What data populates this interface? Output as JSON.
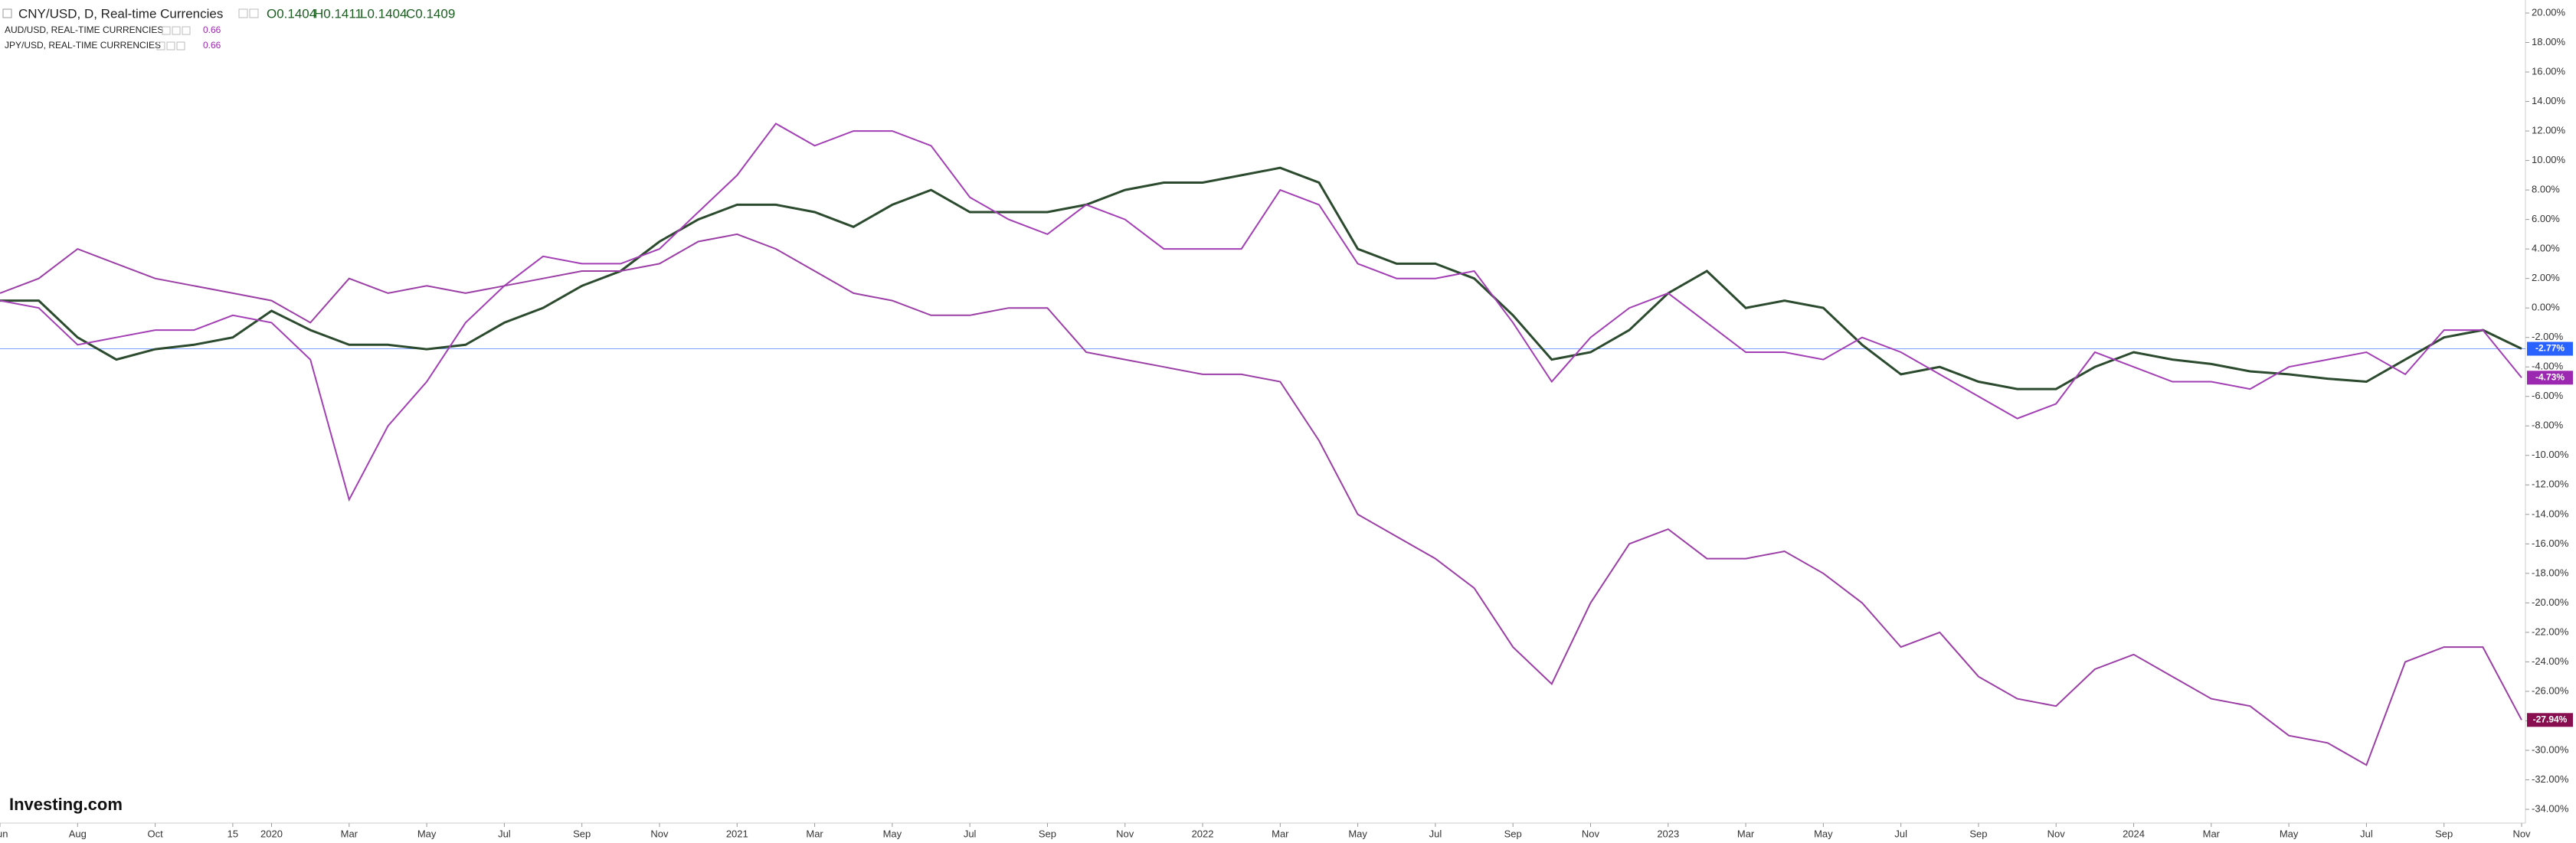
{
  "chart_data": {
    "type": "line",
    "title": "CNY/USD, D, Real-time Currencies",
    "ohlc": [
      "O0.1404",
      "H0.1411",
      "L0.1404",
      "C0.1409"
    ],
    "brand": "Investing.com",
    "categories": [
      "Jun",
      null,
      "Aug",
      null,
      "Oct",
      null,
      "15",
      "2020",
      null,
      "Mar",
      null,
      "May",
      null,
      "Jul",
      null,
      "Sep",
      null,
      "Nov",
      null,
      "2021",
      null,
      "Mar",
      null,
      "May",
      null,
      "Jul",
      null,
      "Sep",
      null,
      "Nov",
      null,
      "2022",
      null,
      "Mar",
      null,
      "May",
      null,
      "Jul",
      null,
      "Sep",
      null,
      "Nov",
      null,
      "2023",
      null,
      "Mar",
      null,
      "May",
      null,
      "Jul",
      null,
      "Sep",
      null,
      "Nov",
      null,
      "2024",
      null,
      "Mar",
      null,
      "May",
      null,
      "Jul",
      null,
      "Sep",
      null,
      "Nov"
    ],
    "series": [
      {
        "name": "CNY/USD, D, Real-time Currencies",
        "color": "#2b4a2e",
        "label_color": "#2962ff",
        "last_value_label": "-2.77%",
        "price_line": true,
        "values": [
          0.5,
          0.5,
          -2,
          -3.5,
          -2.8,
          -2.5,
          -2,
          -0.2,
          -1.5,
          -2.5,
          -2.5,
          -2.8,
          -2.5,
          -1,
          0,
          1.5,
          2.5,
          4.5,
          6,
          7,
          7,
          6.5,
          5.5,
          7,
          8,
          6.5,
          6.5,
          6.5,
          7,
          8,
          8.5,
          8.5,
          9,
          9.5,
          8.5,
          4,
          3,
          3,
          2,
          -0.5,
          -3.5,
          -3,
          -1.5,
          1,
          2.5,
          0,
          0.5,
          0,
          -2.5,
          -4.5,
          -4,
          -5,
          -5.5,
          -5.5,
          -4,
          -3,
          -3.5,
          -3.8,
          -4.3,
          -4.5,
          -4.8,
          -5,
          -3.5,
          -2,
          -1.5,
          -2.77
        ]
      },
      {
        "name": "AUD/USD, REAL-TIME CURRENCIES",
        "price": "0.66",
        "color": "#a23fb4",
        "label_color": "#9c27b0",
        "last_value_label": "-4.73%",
        "values": [
          0.5,
          0,
          -2.5,
          -2,
          -1.5,
          -1.5,
          -0.5,
          -1,
          -3.5,
          -13,
          -8,
          -5,
          -1,
          1.5,
          3.5,
          3,
          3,
          4,
          6.5,
          9,
          12.5,
          11,
          12,
          12,
          11,
          7.5,
          6,
          5,
          7,
          6,
          4,
          4,
          4,
          8,
          7,
          3,
          2,
          2,
          2.5,
          -1,
          -5,
          -2,
          0,
          1,
          -1,
          -3,
          -3,
          -3.5,
          -2,
          -3,
          -4.5,
          -6,
          -7.5,
          -6.5,
          -3,
          -4,
          -5,
          -5,
          -5.5,
          -4,
          -3.5,
          -3,
          -4.5,
          -1.5,
          -1.5,
          -4.73
        ]
      },
      {
        "name": "JPY/USD, REAL-TIME CURRENCIES",
        "price": "0.66",
        "color": "#9b3fa6",
        "label_color": "#880e4f",
        "last_value_label": "-27.94%",
        "values": [
          1,
          2,
          4,
          3,
          2,
          1.5,
          1,
          0.5,
          -1,
          2,
          1,
          1.5,
          1,
          1.5,
          2,
          2.5,
          2.5,
          3,
          4.5,
          5,
          4,
          2.5,
          1,
          0.5,
          -0.5,
          -0.5,
          0,
          0,
          -3,
          -3.5,
          -4,
          -4.5,
          -4.5,
          -5,
          -9,
          -14,
          -15.5,
          -17,
          -19,
          -23,
          -25.5,
          -20,
          -16,
          -15,
          -17,
          -17,
          -16.5,
          -18,
          -20,
          -23,
          -22,
          -25,
          -26.5,
          -27,
          -24.5,
          -23.5,
          -25,
          -26.5,
          -27,
          -29,
          -29.5,
          -31,
          -24,
          -23,
          -23,
          -27.94
        ]
      }
    ],
    "ylim": [
      -34,
      20
    ],
    "yticks": [
      {
        "value": 20,
        "label": "20.00%"
      },
      {
        "value": 18,
        "label": "18.00%"
      },
      {
        "value": 16,
        "label": "16.00%"
      },
      {
        "value": 14,
        "label": "14.00%"
      },
      {
        "value": 12,
        "label": "12.00%"
      },
      {
        "value": 10,
        "label": "10.00%"
      },
      {
        "value": 8,
        "label": "8.00%"
      },
      {
        "value": 6,
        "label": "6.00%"
      },
      {
        "value": 4,
        "label": "4.00%"
      },
      {
        "value": 2,
        "label": "2.00%"
      },
      {
        "value": 0,
        "label": "0.00%"
      },
      {
        "value": -2,
        "label": "-2.00%"
      },
      {
        "value": -4,
        "label": "-4.00%"
      },
      {
        "value": -6,
        "label": "-6.00%"
      },
      {
        "value": -8,
        "label": "-8.00%"
      },
      {
        "value": -10,
        "label": "-10.00%"
      },
      {
        "value": -12,
        "label": "-12.00%"
      },
      {
        "value": -14,
        "label": "-14.00%"
      },
      {
        "value": -16,
        "label": "-16.00%"
      },
      {
        "value": -18,
        "label": "-18.00%"
      },
      {
        "value": -20,
        "label": "-20.00%"
      },
      {
        "value": -22,
        "label": "-22.00%"
      },
      {
        "value": -24,
        "label": "-24.00%"
      },
      {
        "value": -26,
        "label": "-26.00%"
      },
      {
        "value": -28,
        "label": "-28.00%"
      },
      {
        "value": -30,
        "label": "-30.00%"
      },
      {
        "value": -32,
        "label": "-32.00%"
      },
      {
        "value": -34,
        "label": "-34.00%"
      }
    ],
    "grid": false
  }
}
